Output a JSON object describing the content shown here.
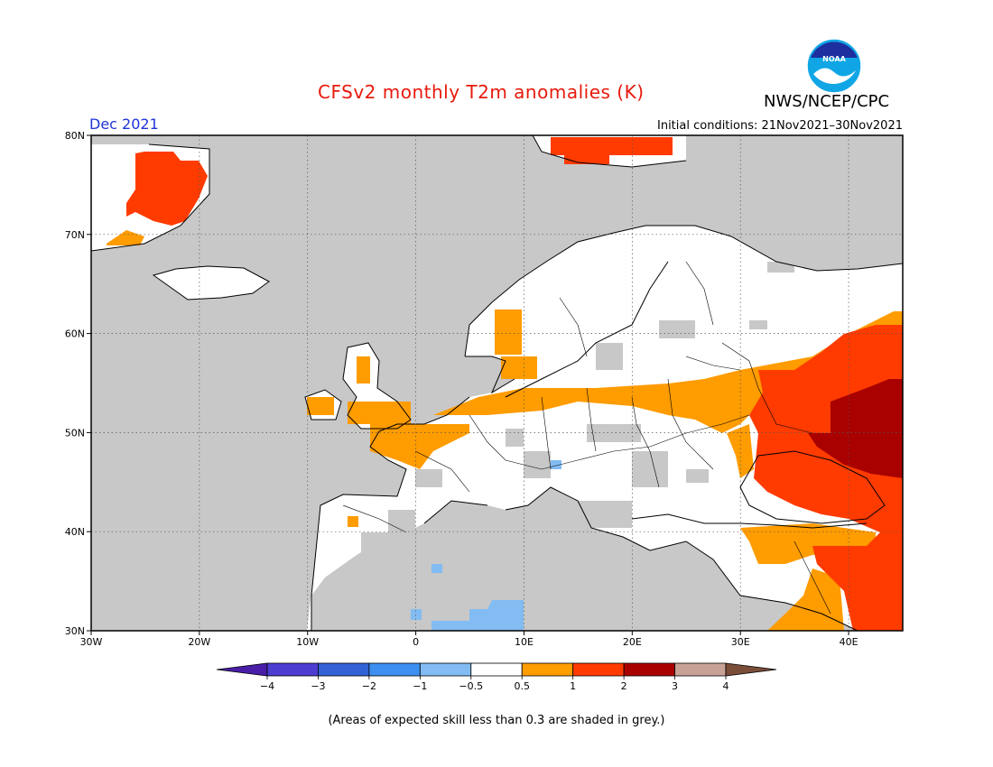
{
  "title": "CFSv2 monthly T2m anomalies (K)",
  "agency": "NWS/NCEP/CPC",
  "logo_text": "NOAA",
  "month_label": "Dec 2021",
  "initial_conditions": "Initial conditions: 21Nov2021–30Nov2021",
  "footnote": "(Areas of expected skill less than 0.3 are shaded in grey.)",
  "map": {
    "region": "Europe",
    "lon_range": [
      -30,
      45
    ],
    "lat_range": [
      30,
      80
    ],
    "lon_ticks": [
      {
        "value": -30,
        "label": "30W"
      },
      {
        "value": -20,
        "label": "20W"
      },
      {
        "value": -10,
        "label": "10W"
      },
      {
        "value": 0,
        "label": "0"
      },
      {
        "value": 10,
        "label": "10E"
      },
      {
        "value": 20,
        "label": "20E"
      },
      {
        "value": 30,
        "label": "30E"
      },
      {
        "value": 40,
        "label": "40E"
      }
    ],
    "lat_ticks": [
      {
        "value": 30,
        "label": "30N"
      },
      {
        "value": 40,
        "label": "40N"
      },
      {
        "value": 50,
        "label": "50N"
      },
      {
        "value": 60,
        "label": "60N"
      },
      {
        "value": 70,
        "label": "70N"
      },
      {
        "value": 80,
        "label": "80N"
      }
    ],
    "grid": true,
    "colors": {
      "ocean_low_skill": "#c8c8c8",
      "border": "#000000",
      "coast": "#000000"
    },
    "anomaly_regions": [
      {
        "name": "Greenland east coast",
        "lon": [
          -28,
          -22
        ],
        "lat": [
          70,
          78
        ],
        "level": "1 to 2"
      },
      {
        "name": "Svalbard",
        "lon": [
          11,
          24
        ],
        "lat": [
          77,
          80
        ],
        "level": "1 to 2"
      },
      {
        "name": "British Isles / Norway coast",
        "lon": [
          -8,
          10
        ],
        "lat": [
          50,
          61
        ],
        "level": "0.5 to 1"
      },
      {
        "name": "France west",
        "lon": [
          -5,
          3
        ],
        "lat": [
          45,
          50
        ],
        "level": "0.5 to 1"
      },
      {
        "name": "Poland / Germany north",
        "lon": [
          8,
          28
        ],
        "lat": [
          51,
          56
        ],
        "level": "0.5 to 1"
      },
      {
        "name": "Eastern Europe / Russia west",
        "lon": [
          28,
          45
        ],
        "lat": [
          46,
          62
        ],
        "level": "1 to 2"
      },
      {
        "name": "Ukraine / southern Russia core",
        "lon": [
          37,
          45
        ],
        "lat": [
          46,
          55
        ],
        "level": "2 to 3"
      },
      {
        "name": "Turkey east / Middle East",
        "lon": [
          32,
          45
        ],
        "lat": [
          30,
          41
        ],
        "level": "1 to 2"
      },
      {
        "name": "North Africa (Algeria/Tunisia)",
        "lon": [
          1,
          10
        ],
        "lat": [
          30,
          33
        ],
        "level": "-1 to -0.5"
      }
    ]
  },
  "colorbar": {
    "bins": [
      {
        "color": "#4a1ea8"
      },
      {
        "color": "#4d3ed1"
      },
      {
        "color": "#3262d6"
      },
      {
        "color": "#3d8ff0"
      },
      {
        "color": "#82bcf2"
      },
      {
        "color": "#ffffff"
      },
      {
        "color": "#ff9c00"
      },
      {
        "color": "#ff3b00"
      },
      {
        "color": "#a90000"
      },
      {
        "color": "#c8a296"
      },
      {
        "color": "#7b4e3a"
      }
    ],
    "tick_labels": [
      "−4",
      "−3",
      "−2",
      "−1",
      "−0.5",
      "0.5",
      "1",
      "2",
      "3",
      "4"
    ]
  }
}
